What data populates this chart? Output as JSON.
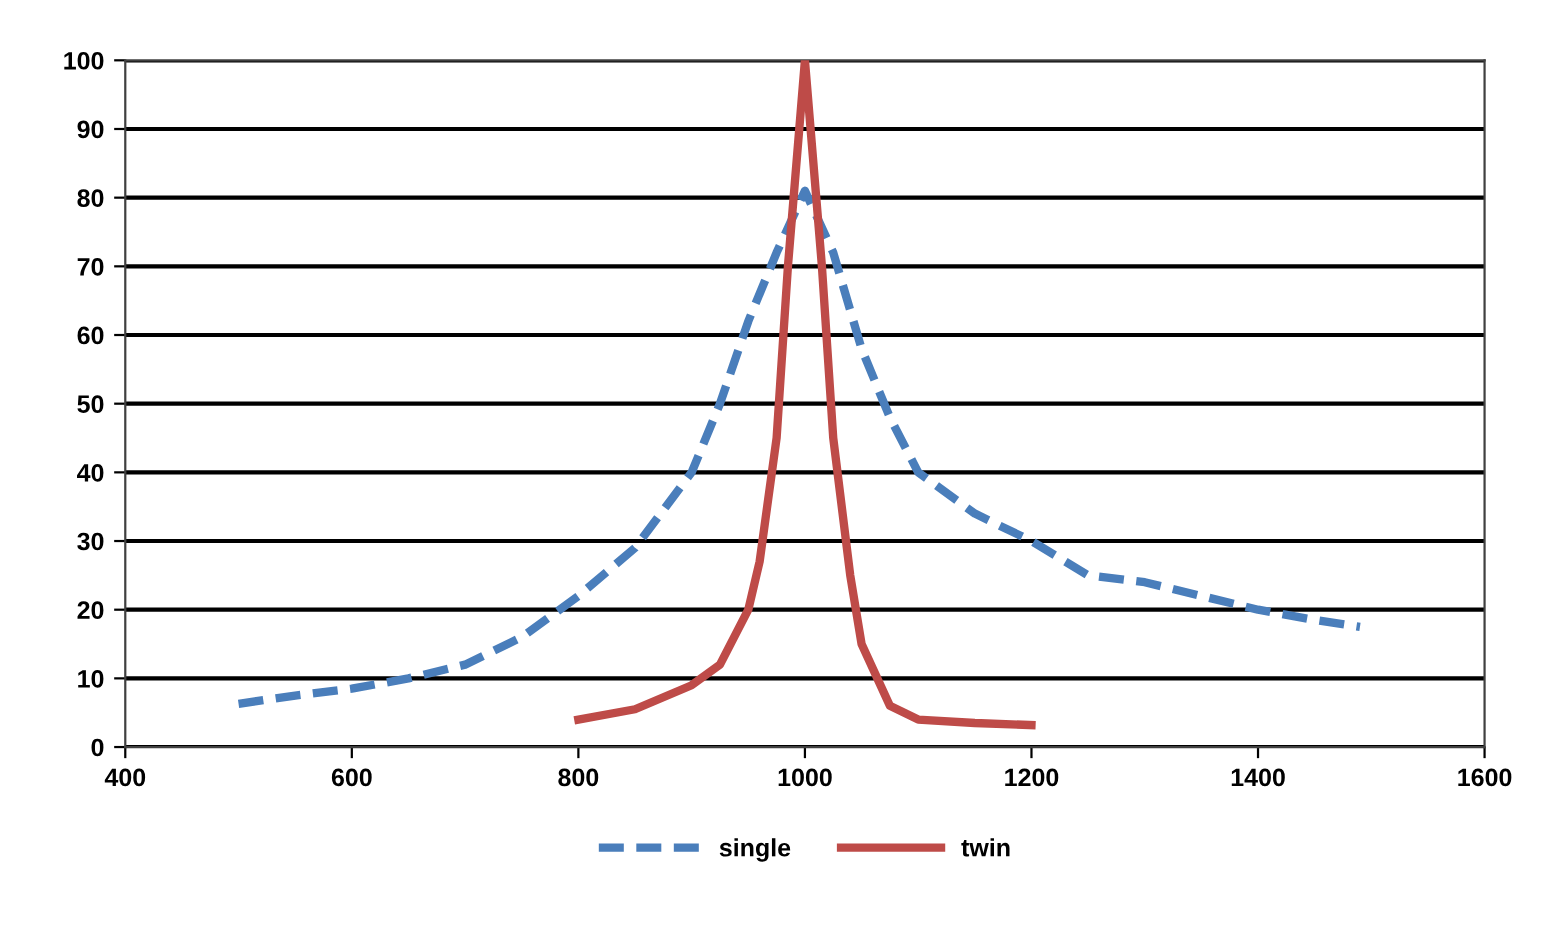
{
  "chart_data": {
    "type": "line",
    "xlim": [
      400,
      1600
    ],
    "xticks": [
      400,
      600,
      800,
      1000,
      1200,
      1400,
      1600
    ],
    "ylim": [
      0,
      100
    ],
    "yticks": [
      0,
      10,
      20,
      30,
      40,
      50,
      60,
      70,
      80,
      90,
      100
    ],
    "grid": "y",
    "legend": "bottom",
    "marker": "none",
    "series": [
      {
        "name": "single",
        "color": "#4a7ebb",
        "line_style": "dashed",
        "x": [
          500,
          550,
          600,
          650,
          700,
          750,
          800,
          850,
          900,
          925,
          950,
          975,
          1000,
          1025,
          1050,
          1075,
          1100,
          1150,
          1200,
          1250,
          1300,
          1350,
          1400,
          1450,
          1490
        ],
        "values": [
          6.3,
          7.5,
          8.5,
          10,
          12,
          16,
          22,
          29,
          40,
          50,
          62,
          72,
          81,
          72,
          58,
          48,
          40,
          34,
          30,
          25,
          24,
          22,
          20,
          18.5,
          17.5
        ]
      },
      {
        "name": "twin",
        "color": "#be4b48",
        "line_style": "solid",
        "x": [
          800,
          850,
          900,
          925,
          950,
          960,
          975,
          985,
          1000,
          1015,
          1025,
          1040,
          1050,
          1075,
          1100,
          1150,
          1200
        ],
        "values": [
          4,
          5.5,
          9,
          12,
          20,
          27,
          45,
          70,
          100,
          70,
          45,
          25,
          15,
          6,
          4,
          3.5,
          3.2
        ]
      }
    ]
  }
}
